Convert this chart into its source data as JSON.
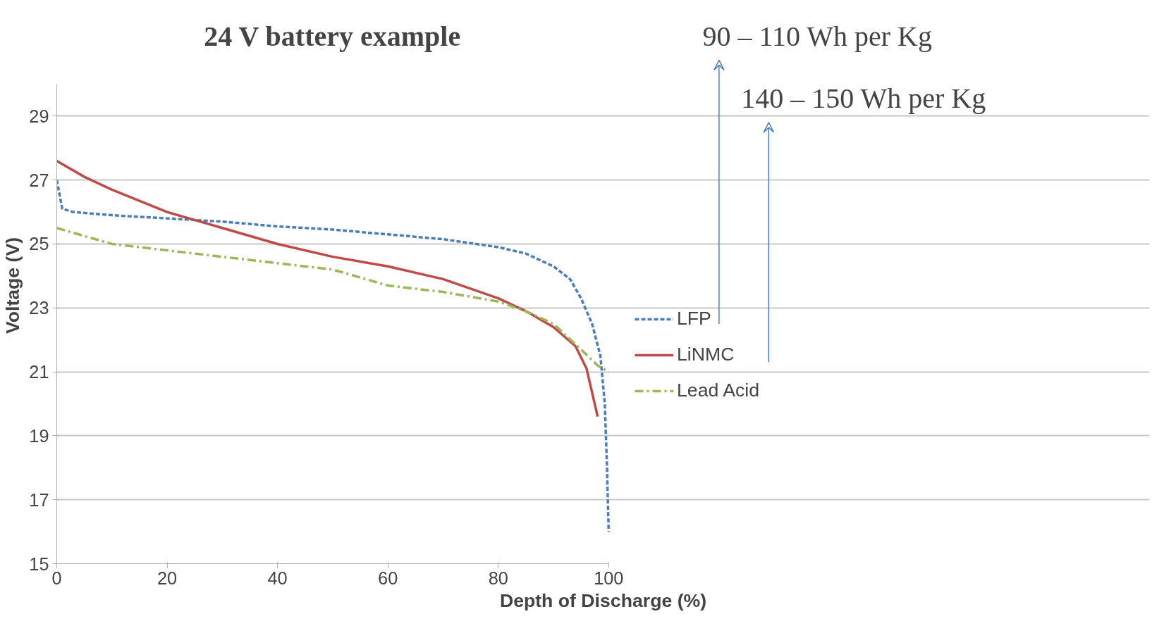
{
  "chart_data": {
    "type": "line",
    "title": "24 V battery example",
    "xlabel": "Depth of Discharge (%)",
    "ylabel": "Voltage (V)",
    "xlim": [
      0,
      100
    ],
    "ylim": [
      15,
      30
    ],
    "xticks": [
      0,
      20,
      40,
      60,
      80,
      100
    ],
    "yticks": [
      15,
      17,
      19,
      21,
      23,
      25,
      27,
      29
    ],
    "grid": "y",
    "legend": "right",
    "annotations": [
      "90 – 110 Wh per Kg",
      "140 – 150 Wh per Kg"
    ],
    "series": [
      {
        "name": "LFP",
        "color": "#4a7ebb",
        "line_style": "dashed",
        "x": [
          0,
          1,
          3,
          10,
          20,
          30,
          40,
          50,
          60,
          70,
          80,
          85,
          90,
          93,
          95,
          97,
          98.5,
          99.3,
          99.7,
          100
        ],
        "values": [
          27,
          26.1,
          26.0,
          25.9,
          25.8,
          25.7,
          25.55,
          25.45,
          25.3,
          25.15,
          24.9,
          24.7,
          24.3,
          23.9,
          23.3,
          22.5,
          21.5,
          20,
          18,
          16
        ]
      },
      {
        "name": "LiNMC",
        "color": "#be4b48",
        "line_style": "solid",
        "x": [
          0,
          5,
          10,
          20,
          30,
          40,
          50,
          60,
          70,
          80,
          85,
          90,
          94,
          96,
          98
        ],
        "values": [
          27.6,
          27.1,
          26.7,
          26.0,
          25.5,
          25.0,
          24.6,
          24.3,
          23.9,
          23.3,
          22.9,
          22.4,
          21.8,
          21.1,
          19.6
        ]
      },
      {
        "name": "Lead Acid",
        "color": "#98b954",
        "line_style": "dashdot",
        "x": [
          0,
          10,
          20,
          30,
          40,
          50,
          60,
          70,
          80,
          85,
          90,
          95,
          98,
          100
        ],
        "values": [
          25.5,
          25.0,
          24.8,
          24.6,
          24.4,
          24.2,
          23.7,
          23.5,
          23.2,
          22.9,
          22.5,
          21.7,
          21.2,
          21.0
        ]
      }
    ]
  }
}
